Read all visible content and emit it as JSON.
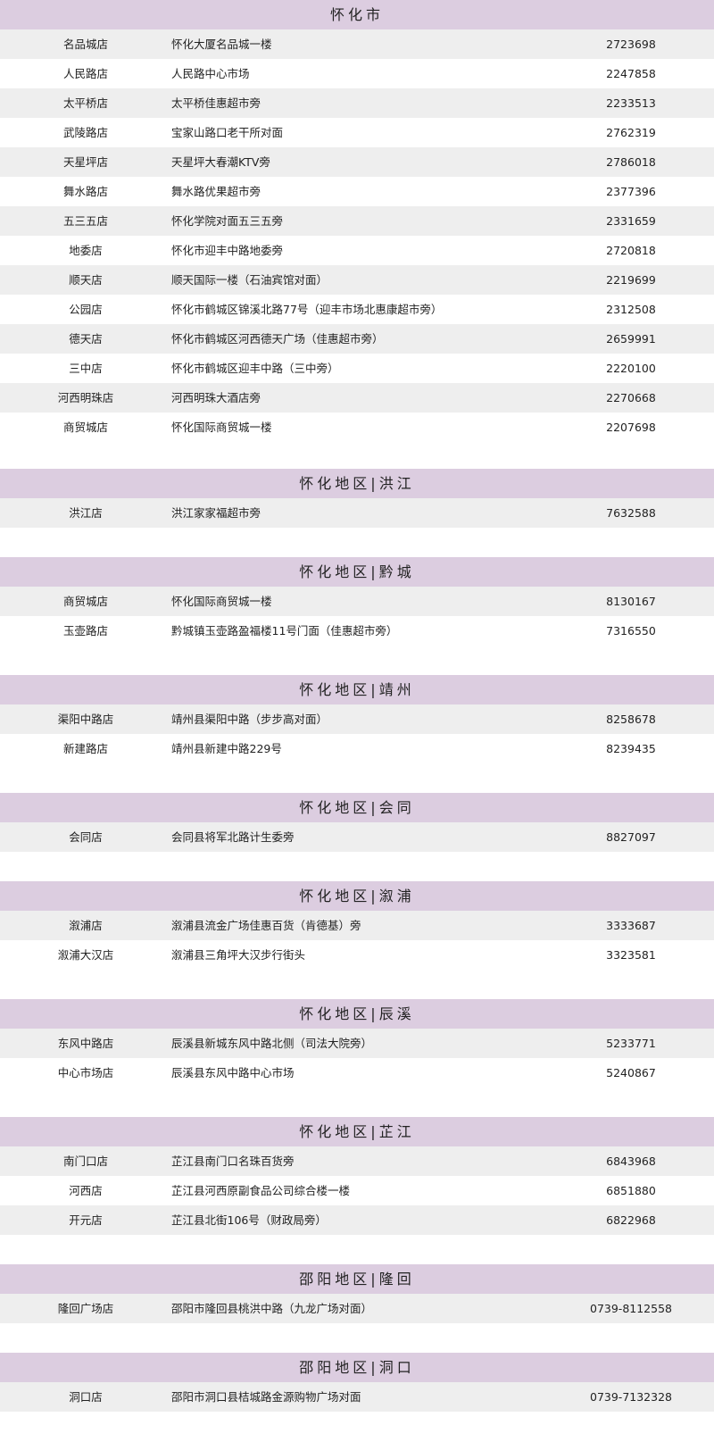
{
  "colors": {
    "header_bg": "#dccde0",
    "alt_row_bg": "#eeeeee"
  },
  "sections": [
    {
      "title": "怀化市",
      "stores": [
        {
          "name": "名品城店",
          "address": "怀化大厦名品城一楼",
          "phone": "2723698"
        },
        {
          "name": "人民路店",
          "address": "人民路中心市场",
          "phone": "2247858"
        },
        {
          "name": "太平桥店",
          "address": "太平桥佳惠超市旁",
          "phone": "2233513"
        },
        {
          "name": "武陵路店",
          "address": "宝家山路口老干所对面",
          "phone": "2762319"
        },
        {
          "name": "天星坪店",
          "address": "天星坪大春潮KTV旁",
          "phone": "2786018"
        },
        {
          "name": "舞水路店",
          "address": "舞水路优果超市旁",
          "phone": "2377396"
        },
        {
          "name": "五三五店",
          "address": "怀化学院对面五三五旁",
          "phone": "2331659"
        },
        {
          "name": "地委店",
          "address": "怀化市迎丰中路地委旁",
          "phone": "2720818"
        },
        {
          "name": "顺天店",
          "address": "顺天国际一楼（石油宾馆对面）",
          "phone": "2219699"
        },
        {
          "name": "公园店",
          "address": "怀化市鹤城区锦溪北路77号（迎丰市场北惠康超市旁）",
          "phone": "2312508"
        },
        {
          "name": "德天店",
          "address": "怀化市鹤城区河西德天广场（佳惠超市旁）",
          "phone": "2659991"
        },
        {
          "name": "三中店",
          "address": "怀化市鹤城区迎丰中路（三中旁）",
          "phone": "2220100"
        },
        {
          "name": "河西明珠店",
          "address": "河西明珠大酒店旁",
          "phone": "2270668"
        },
        {
          "name": "商贸城店",
          "address": "怀化国际商贸城一楼",
          "phone": "2207698"
        }
      ]
    },
    {
      "title": "怀化地区|洪江",
      "stores": [
        {
          "name": "洪江店",
          "address": "洪江家家福超市旁",
          "phone": "7632588"
        }
      ]
    },
    {
      "title": "怀化地区|黔城",
      "stores": [
        {
          "name": "商贸城店",
          "address": "怀化国际商贸城一楼",
          "phone": "8130167"
        },
        {
          "name": "玉壶路店",
          "address": "黔城镇玉壶路盈福楼11号门面（佳惠超市旁）",
          "phone": "7316550"
        }
      ]
    },
    {
      "title": "怀化地区|靖州",
      "stores": [
        {
          "name": "渠阳中路店",
          "address": "靖州县渠阳中路（步步高对面）",
          "phone": "8258678"
        },
        {
          "name": "新建路店",
          "address": "靖州县新建中路229号",
          "phone": "8239435"
        }
      ]
    },
    {
      "title": "怀化地区|会同",
      "stores": [
        {
          "name": "会同店",
          "address": "会同县将军北路计生委旁",
          "phone": "8827097"
        }
      ]
    },
    {
      "title": "怀化地区|溆浦",
      "stores": [
        {
          "name": "溆浦店",
          "address": "溆浦县流金广场佳惠百货（肯德基）旁",
          "phone": "3333687"
        },
        {
          "name": "溆浦大汉店",
          "address": "溆浦县三角坪大汉步行街头",
          "phone": "3323581"
        }
      ]
    },
    {
      "title": "怀化地区|辰溪",
      "stores": [
        {
          "name": "东风中路店",
          "address": "辰溪县新城东风中路北侧（司法大院旁）",
          "phone": "5233771"
        },
        {
          "name": "中心市场店",
          "address": "辰溪县东风中路中心市场",
          "phone": "5240867"
        }
      ]
    },
    {
      "title": "怀化地区|芷江",
      "stores": [
        {
          "name": "南门口店",
          "address": "芷江县南门口名珠百货旁",
          "phone": "6843968"
        },
        {
          "name": "河西店",
          "address": "芷江县河西原副食品公司综合楼一楼",
          "phone": "6851880"
        },
        {
          "name": "开元店",
          "address": "芷江县北街106号（财政局旁）",
          "phone": "6822968"
        }
      ]
    },
    {
      "title": "邵阳地区|隆回",
      "stores": [
        {
          "name": "隆回广场店",
          "address": "邵阳市隆回县桃洪中路（九龙广场对面）",
          "phone": "0739-8112558"
        }
      ]
    },
    {
      "title": "邵阳地区|洞口",
      "stores": [
        {
          "name": "洞口店",
          "address": "邵阳市洞口县桔城路金源购物广场对面",
          "phone": "0739-7132328"
        }
      ]
    }
  ]
}
